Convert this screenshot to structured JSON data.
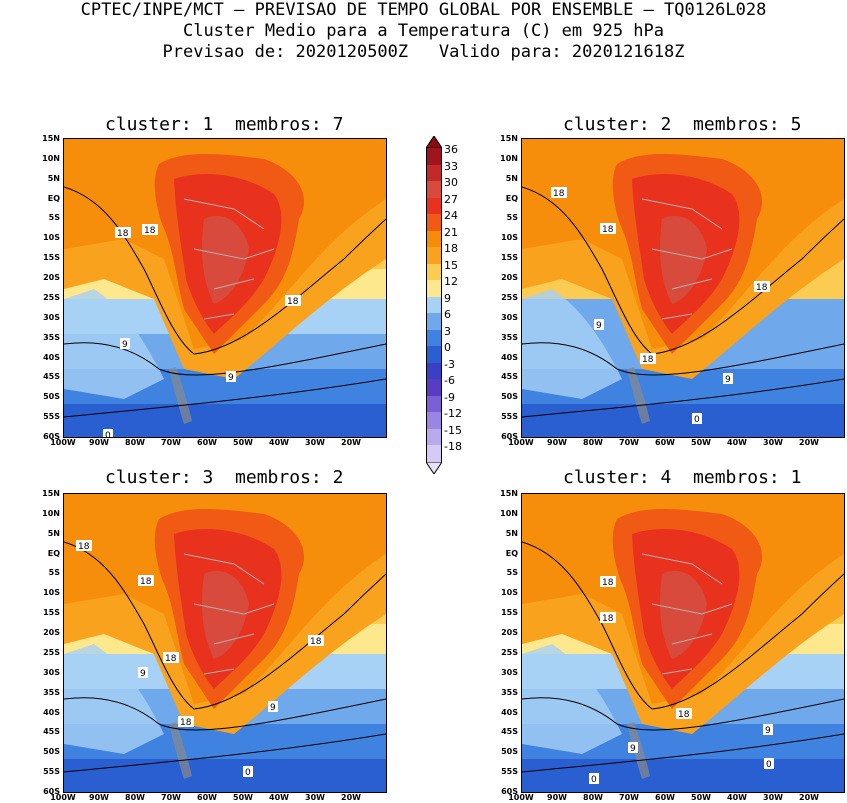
{
  "header": {
    "line1": "CPTEC/INPE/MCT – PREVISAO DE TEMPO GLOBAL POR ENSEMBLE – TQ0126L028",
    "line2": "Cluster Medio para a Temperatura (C) em 925 hPa",
    "line3": "Previsao de: 2020120500Z   Valido para: 2020121618Z"
  },
  "panels": [
    {
      "title": "cluster: 1  membros: 7",
      "contour_labels": [
        "18",
        "18",
        "18",
        "9",
        "9",
        "0"
      ]
    },
    {
      "title": "cluster: 2  membros: 5",
      "contour_labels": [
        "18",
        "18",
        "18",
        "9",
        "18",
        "9",
        "0"
      ]
    },
    {
      "title": "cluster: 3  membros: 2",
      "contour_labels": [
        "18",
        "18",
        "18",
        "18",
        "9",
        "18",
        "9",
        "0"
      ]
    },
    {
      "title": "cluster: 4  membros: 1",
      "contour_labels": [
        "18",
        "18",
        "9",
        "18",
        "9",
        "0",
        "0"
      ]
    }
  ],
  "y_ticks": [
    "15N",
    "10N",
    "5N",
    "EQ",
    "5S",
    "10S",
    "15S",
    "20S",
    "25S",
    "30S",
    "35S",
    "40S",
    "45S",
    "50S",
    "55S",
    "60S"
  ],
  "x_ticks": [
    "100W",
    "90W",
    "80W",
    "70W",
    "60W",
    "50W",
    "40W",
    "30W",
    "20W"
  ],
  "legend": {
    "labels": [
      "36",
      "33",
      "30",
      "27",
      "24",
      "21",
      "18",
      "15",
      "12",
      "9",
      "6",
      "3",
      "0",
      "-3",
      "-6",
      "-9",
      "-12",
      "-15",
      "-18"
    ],
    "colors": [
      "#a0141e",
      "#c22a2a",
      "#d84a3c",
      "#e8321e",
      "#f05a14",
      "#f58c0a",
      "#f8a21e",
      "#fbcb52",
      "#fde88e",
      "#a7d1f5",
      "#6fa9ec",
      "#3f82e0",
      "#2a5fd2",
      "#3a3fc4",
      "#5a3cc4",
      "#7b5fd6",
      "#9a86e2",
      "#b8aaec",
      "#d4cbf4"
    ],
    "top_arrow_color": "#8c0a14",
    "bottom_arrow_color": "#e8e2fa"
  }
}
